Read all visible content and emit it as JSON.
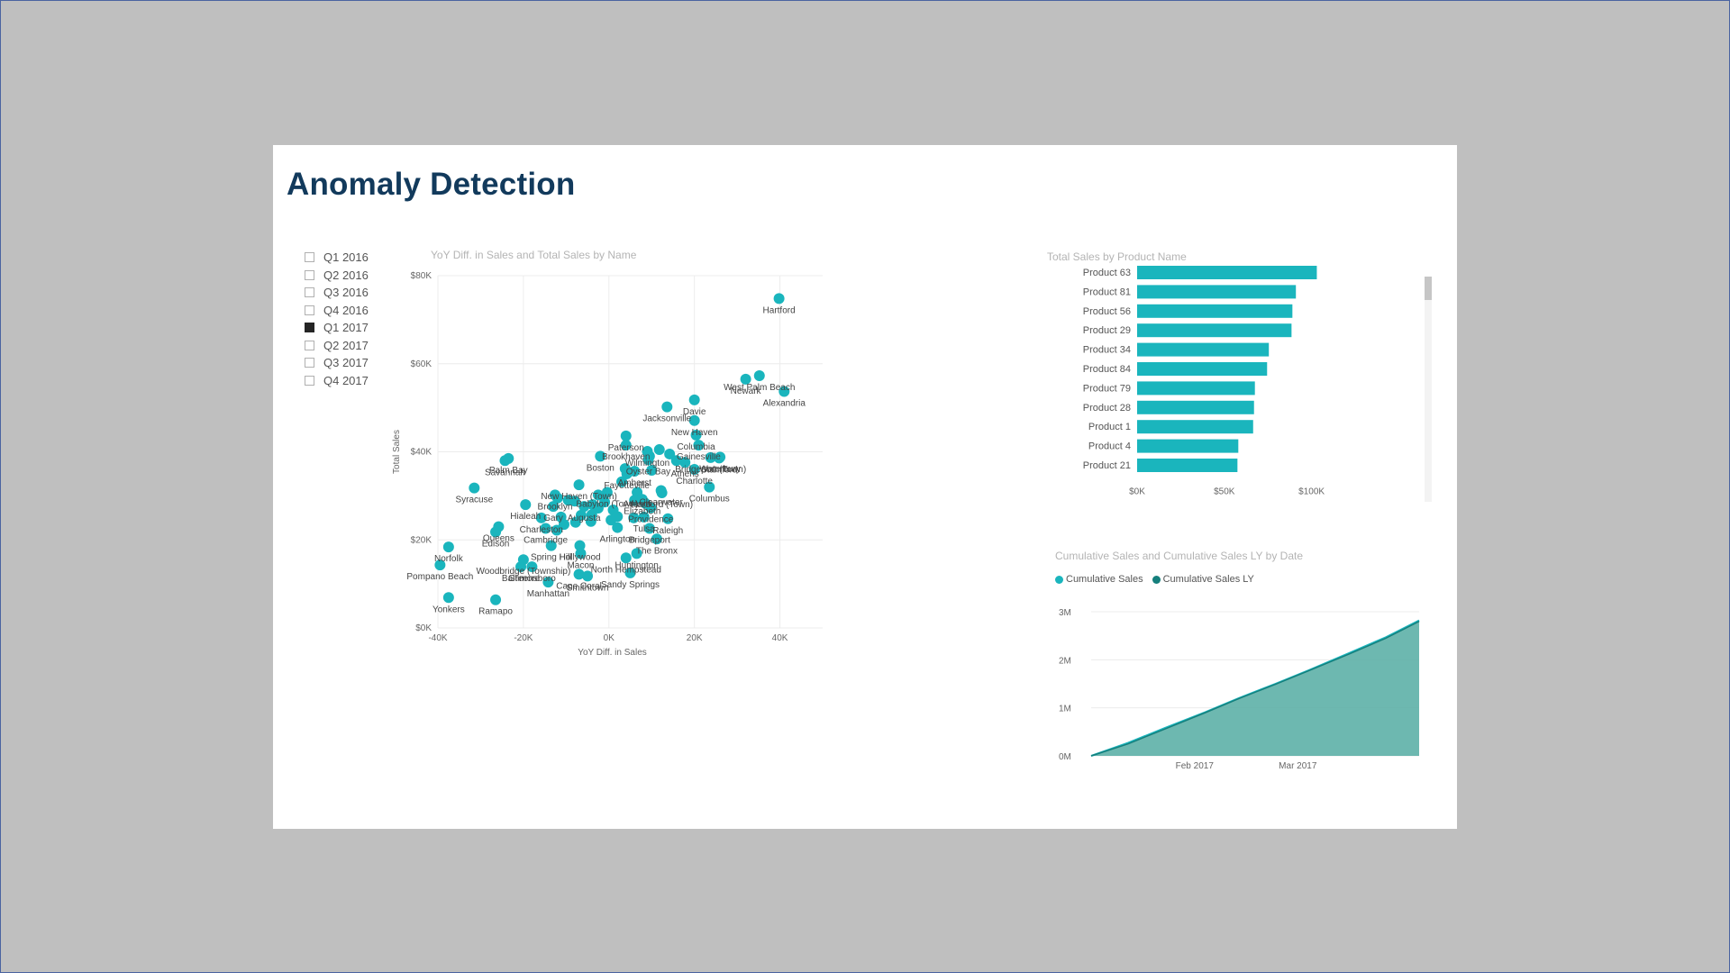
{
  "report": {
    "title": "Anomaly Detection"
  },
  "slicer": {
    "items": [
      {
        "label": "Q1 2016",
        "checked": false
      },
      {
        "label": "Q2 2016",
        "checked": false
      },
      {
        "label": "Q3 2016",
        "checked": false
      },
      {
        "label": "Q4 2016",
        "checked": false
      },
      {
        "label": "Q1 2017",
        "checked": true
      },
      {
        "label": "Q2 2017",
        "checked": false
      },
      {
        "label": "Q3 2017",
        "checked": false
      },
      {
        "label": "Q4 2017",
        "checked": false
      }
    ]
  },
  "visual_titles": {
    "scatter": "YoY Diff. in Sales and Total Sales by Name",
    "bar": "Total Sales by Product Name",
    "area": "Cumulative Sales and Cumulative Sales LY by Date"
  },
  "colors": {
    "accent": "#1ab5bd",
    "accent_dark": "#157f7c",
    "area_fill": "#5db0a7",
    "title": "#123a5c"
  },
  "chart_data": [
    {
      "type": "scatter",
      "title": "YoY Diff. in Sales and Total Sales by Name",
      "xlabel": "YoY Diff. in Sales",
      "ylabel": "Total Sales",
      "xlim": [
        -40000,
        50000
      ],
      "ylim": [
        0,
        80000
      ],
      "x_ticks": [
        -40000,
        -20000,
        0,
        20000,
        40000
      ],
      "x_tick_labels": [
        "-40K",
        "-20K",
        "0K",
        "20K",
        "40K"
      ],
      "y_ticks": [
        0,
        20000,
        40000,
        60000,
        80000
      ],
      "y_tick_labels": [
        "$0K",
        "$20K",
        "$40K",
        "$60K",
        "$80K"
      ],
      "grid": true,
      "color": "#1ab5bd",
      "points": [
        {
          "label": "Hartford",
          "x": 39800,
          "y": 74800
        },
        {
          "label": "West Palm Beach",
          "x": 35200,
          "y": 57300
        },
        {
          "label": "Newark",
          "x": 32000,
          "y": 56500
        },
        {
          "label": "Alexandria",
          "x": 41000,
          "y": 53700
        },
        {
          "label": "Davie",
          "x": 20000,
          "y": 51800
        },
        {
          "label": "Jacksonville",
          "x": 13600,
          "y": 50200
        },
        {
          "label": "New Haven",
          "x": 20000,
          "y": 47100
        },
        {
          "label": "Columbia",
          "x": 20400,
          "y": 43800
        },
        {
          "label": "Paterson",
          "x": 4000,
          "y": 43600
        },
        {
          "label": "Brookhaven",
          "x": 4000,
          "y": 41500
        },
        {
          "label": "Gainesville",
          "x": 21000,
          "y": 41500
        },
        {
          "label": "Wilmington",
          "x": 9000,
          "y": 40100
        },
        {
          "label": "Waterbury",
          "x": 26000,
          "y": 38800
        },
        {
          "label": "Bridgeport (Town)",
          "x": 23800,
          "y": 38700
        },
        {
          "label": "Stamford",
          "x": 25800,
          "y": 38600
        },
        {
          "label": "Palm Bay",
          "x": -23500,
          "y": 38500
        },
        {
          "label": "Savannah",
          "x": -24300,
          "y": 38000
        },
        {
          "label": "Oyster Bay",
          "x": 9200,
          "y": 38200
        },
        {
          "label": "Boston",
          "x": -2000,
          "y": 39000
        },
        {
          "label": "Charlotte",
          "x": 20000,
          "y": 36000
        },
        {
          "label": "Athens",
          "x": 17800,
          "y": 37600
        },
        {
          "label": "Amherst",
          "x": 6000,
          "y": 35600
        },
        {
          "label": "Fayetteville",
          "x": 4200,
          "y": 35000
        },
        {
          "label": "New Haven (Town)",
          "x": -7000,
          "y": 32500
        },
        {
          "label": "Columbus",
          "x": 23500,
          "y": 32000
        },
        {
          "label": "Clearwater",
          "x": 12200,
          "y": 31200
        },
        {
          "label": "Babylon (Town)",
          "x": -400,
          "y": 30800
        },
        {
          "label": "Atlanta",
          "x": 6600,
          "y": 30800
        },
        {
          "label": "Syracuse",
          "x": -31500,
          "y": 31800
        },
        {
          "label": "Hartford (Town)",
          "x": 12400,
          "y": 30700
        },
        {
          "label": "Brooklyn",
          "x": -12600,
          "y": 30200
        },
        {
          "label": "Elizabeth",
          "x": 7800,
          "y": 29200
        },
        {
          "label": "Hialeah",
          "x": -19500,
          "y": 28000
        },
        {
          "label": "Gary",
          "x": -13000,
          "y": 27600
        },
        {
          "label": "Augusta",
          "x": -5800,
          "y": 27600
        },
        {
          "label": "Providence",
          "x": 9800,
          "y": 27300
        },
        {
          "label": "Raleigh",
          "x": 13800,
          "y": 24800
        },
        {
          "label": "Charleston",
          "x": -15800,
          "y": 25000
        },
        {
          "label": "Tulsa",
          "x": 8200,
          "y": 25200
        },
        {
          "label": "Cambridge",
          "x": -14800,
          "y": 22600
        },
        {
          "label": "Queens",
          "x": -25800,
          "y": 23000
        },
        {
          "label": "Bridgeport",
          "x": 9500,
          "y": 22600
        },
        {
          "label": "Arlington",
          "x": 2000,
          "y": 22800
        },
        {
          "label": "Edison",
          "x": -26500,
          "y": 21800
        },
        {
          "label": "The Bronx",
          "x": 11200,
          "y": 20200
        },
        {
          "label": "Spring Hill",
          "x": -13500,
          "y": 18700
        },
        {
          "label": "Hollywood",
          "x": -6800,
          "y": 18700
        },
        {
          "label": "Norfolk",
          "x": -37500,
          "y": 18400
        },
        {
          "label": "Huntington",
          "x": 6500,
          "y": 16900
        },
        {
          "label": "Woodbridge (Township)",
          "x": -20000,
          "y": 15500
        },
        {
          "label": "Macon",
          "x": -6600,
          "y": 16900
        },
        {
          "label": "North Hempstead",
          "x": 4000,
          "y": 15900
        },
        {
          "label": "Pompano Beach",
          "x": -39500,
          "y": 14300
        },
        {
          "label": "Greensboro",
          "x": -18000,
          "y": 13900
        },
        {
          "label": "Baltimore",
          "x": -20600,
          "y": 13900
        },
        {
          "label": "Smithtown",
          "x": -5000,
          "y": 11800
        },
        {
          "label": "Sandy Springs",
          "x": 5000,
          "y": 12500
        },
        {
          "label": "Cape Coral",
          "x": -7000,
          "y": 12200
        },
        {
          "label": "Manhattan",
          "x": -14200,
          "y": 10400
        },
        {
          "label": "Yonkers",
          "x": -37500,
          "y": 6900
        },
        {
          "label": "Ramapo",
          "x": -26500,
          "y": 6400
        },
        {
          "label": "",
          "x": -12000,
          "y": 29500
        },
        {
          "label": "",
          "x": -9500,
          "y": 29000
        },
        {
          "label": "",
          "x": -8000,
          "y": 28800
        },
        {
          "label": "",
          "x": -3800,
          "y": 28000
        },
        {
          "label": "",
          "x": -2500,
          "y": 27200
        },
        {
          "label": "",
          "x": -1000,
          "y": 28600
        },
        {
          "label": "",
          "x": 1000,
          "y": 26800
        },
        {
          "label": "",
          "x": 2000,
          "y": 25300
        },
        {
          "label": "",
          "x": -11200,
          "y": 25200
        },
        {
          "label": "",
          "x": -6500,
          "y": 25600
        },
        {
          "label": "",
          "x": -4200,
          "y": 24200
        },
        {
          "label": "",
          "x": 500,
          "y": 24500
        },
        {
          "label": "",
          "x": 5800,
          "y": 25000
        },
        {
          "label": "",
          "x": -12200,
          "y": 22200
        },
        {
          "label": "",
          "x": -10500,
          "y": 23500
        },
        {
          "label": "",
          "x": 3000,
          "y": 33200
        },
        {
          "label": "",
          "x": 10000,
          "y": 35800
        },
        {
          "label": "",
          "x": 8500,
          "y": 28300
        },
        {
          "label": "",
          "x": 6000,
          "y": 29000
        },
        {
          "label": "",
          "x": -2500,
          "y": 30200
        },
        {
          "label": "",
          "x": 11800,
          "y": 40500
        },
        {
          "label": "",
          "x": 14200,
          "y": 39500
        },
        {
          "label": "",
          "x": 15800,
          "y": 38000
        },
        {
          "label": "",
          "x": 3800,
          "y": 36200
        },
        {
          "label": "",
          "x": 9500,
          "y": 39000
        },
        {
          "label": "",
          "x": -4000,
          "y": 25700
        },
        {
          "label": "",
          "x": -7800,
          "y": 24000
        }
      ]
    },
    {
      "type": "bar",
      "orientation": "horizontal",
      "title": "Total Sales by Product Name",
      "categories": [
        "Product 63",
        "Product 81",
        "Product 56",
        "Product 29",
        "Product 34",
        "Product 84",
        "Product 79",
        "Product 28",
        "Product 1",
        "Product 4",
        "Product 21"
      ],
      "values": [
        103000,
        91000,
        89000,
        88500,
        75500,
        74500,
        67500,
        67000,
        66500,
        58000,
        57500
      ],
      "xlim": [
        0,
        110000
      ],
      "x_ticks": [
        0,
        50000,
        100000
      ],
      "x_tick_labels": [
        "$0K",
        "$50K",
        "$100K"
      ],
      "color": "#1ab5bd"
    },
    {
      "type": "area",
      "title": "Cumulative Sales and Cumulative Sales LY by Date",
      "series": [
        {
          "name": "Cumulative Sales",
          "color": "#1ab5bd"
        },
        {
          "name": "Cumulative Sales LY",
          "color": "#157f7c"
        }
      ],
      "x_tick_labels": [
        "Feb 2017",
        "Mar 2017"
      ],
      "y_ticks": [
        0,
        1000000,
        2000000,
        3000000
      ],
      "y_tick_labels": [
        "0M",
        "1M",
        "2M",
        "3M"
      ],
      "ylim": [
        0,
        3000000
      ],
      "days": [
        0,
        10,
        20,
        31,
        40,
        50,
        59,
        70,
        80,
        89
      ],
      "values_cumulative_sales": [
        0,
        270000,
        580000,
        910000,
        1200000,
        1500000,
        1780000,
        2140000,
        2470000,
        2820000
      ],
      "values_cumulative_sales_ly": [
        0,
        250000,
        560000,
        900000,
        1190000,
        1490000,
        1770000,
        2120000,
        2450000,
        2800000
      ]
    }
  ]
}
